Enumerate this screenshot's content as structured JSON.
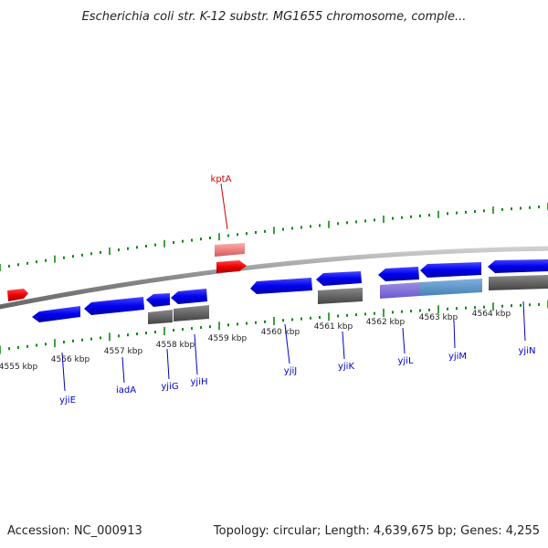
{
  "title": "Escherichia coli str. K-12 substr. MG1655 chromosome, comple...",
  "footer": {
    "accession": "Accession: NC_000913",
    "info": "Topology: circular; Length: 4,639,675 bp; Genes: 4,255"
  },
  "map": {
    "unit": "kbp",
    "ticks": [
      {
        "kbp": 4555,
        "label": "4555 kbp"
      },
      {
        "kbp": 4556,
        "label": "4556 kbp"
      },
      {
        "kbp": 4557,
        "label": "4557 kbp"
      },
      {
        "kbp": 4558,
        "label": "4558 kbp"
      },
      {
        "kbp": 4559,
        "label": "4559 kbp"
      },
      {
        "kbp": 4560,
        "label": "4560 kbp"
      },
      {
        "kbp": 4561,
        "label": "4561 kbp"
      },
      {
        "kbp": 4562,
        "label": "4562 kbp"
      },
      {
        "kbp": 4563,
        "label": "4563 kbp"
      },
      {
        "kbp": 4564,
        "label": "4564 kbp"
      }
    ],
    "gene_labels": [
      "kptA",
      "yjiE",
      "iadA",
      "yjiG",
      "yjiH",
      "yjiJ",
      "yjiK",
      "yjiL",
      "yjiM",
      "yjiN"
    ],
    "colors": {
      "forward_gene": "#0000ee",
      "reverse_gene": "#0000ee",
      "cds_feature": "#666666",
      "highlight_gene": "#ee0000",
      "highlight_cds": "#f08080",
      "tick_marks": "#118811",
      "backbone": "#999999",
      "label_text": "#0000cc",
      "highlight_label": "#cc0000"
    }
  }
}
